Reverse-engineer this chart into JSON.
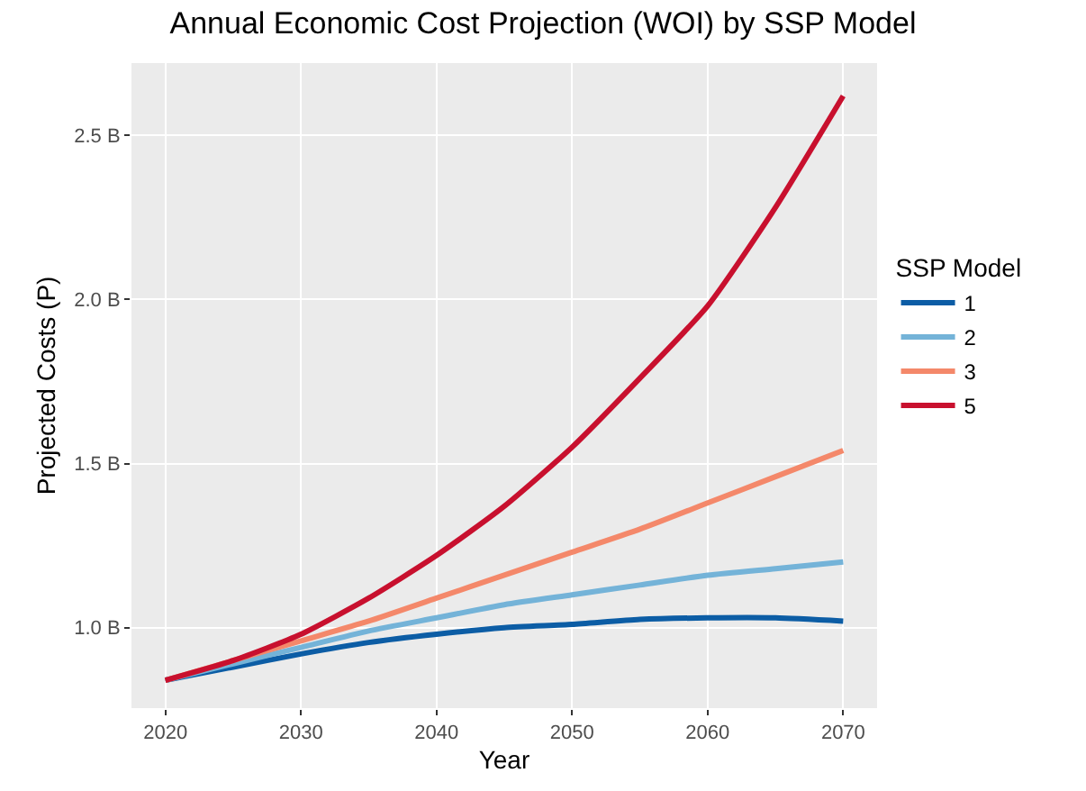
{
  "chart_data": {
    "type": "line",
    "title": "Annual Economic Cost Projection (WOI) by SSP Model",
    "xlabel": "Year",
    "ylabel": "Projected Costs (P)",
    "legend_title": "SSP Model",
    "x": [
      2020,
      2025,
      2030,
      2035,
      2040,
      2045,
      2050,
      2055,
      2060,
      2065,
      2070
    ],
    "series": [
      {
        "name": "1",
        "color": "#0c5da5",
        "values": [
          0.84,
          0.88,
          0.92,
          0.955,
          0.98,
          1.0,
          1.01,
          1.025,
          1.03,
          1.03,
          1.02
        ]
      },
      {
        "name": "2",
        "color": "#74b3d8",
        "values": [
          0.84,
          0.89,
          0.94,
          0.99,
          1.03,
          1.07,
          1.1,
          1.13,
          1.16,
          1.18,
          1.2
        ]
      },
      {
        "name": "3",
        "color": "#f4886a",
        "values": [
          0.84,
          0.9,
          0.96,
          1.02,
          1.09,
          1.16,
          1.23,
          1.3,
          1.38,
          1.46,
          1.54
        ]
      },
      {
        "name": "5",
        "color": "#c8102e",
        "values": [
          0.84,
          0.9,
          0.98,
          1.09,
          1.22,
          1.37,
          1.55,
          1.76,
          1.98,
          2.28,
          2.62
        ]
      }
    ],
    "xlim": [
      2017.5,
      2072.5
    ],
    "xticks": [
      2020,
      2030,
      2040,
      2050,
      2060,
      2070
    ],
    "ylim": [
      0.755,
      2.72
    ],
    "yticks": [
      {
        "value": 1,
        "label": "1.0 B"
      },
      {
        "value": 1.5,
        "label": "1.5 B"
      },
      {
        "value": 2,
        "label": "2.0 B"
      },
      {
        "value": 2.5,
        "label": "2.5 B"
      }
    ],
    "grid": true,
    "legend": "right",
    "marker": "none",
    "line_style": "solid"
  }
}
